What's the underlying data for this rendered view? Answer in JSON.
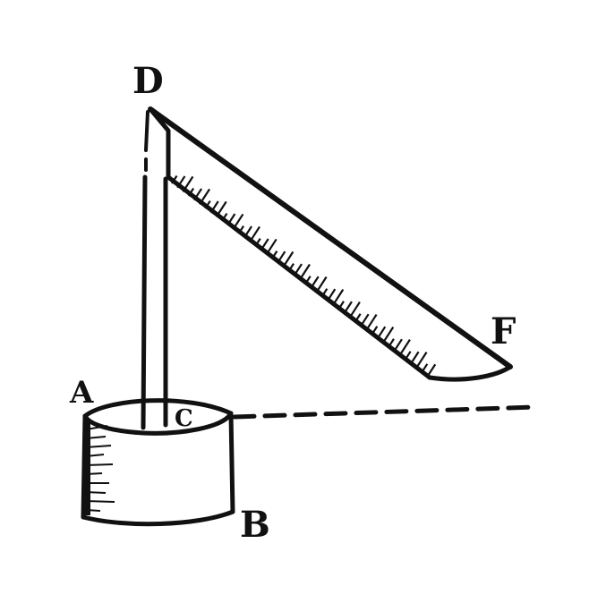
{
  "labels": {
    "d": "D",
    "f": "F",
    "a": "A",
    "b": "B",
    "c": "C"
  },
  "colors": {
    "ink": "#111111",
    "paper": "#ffffff"
  }
}
